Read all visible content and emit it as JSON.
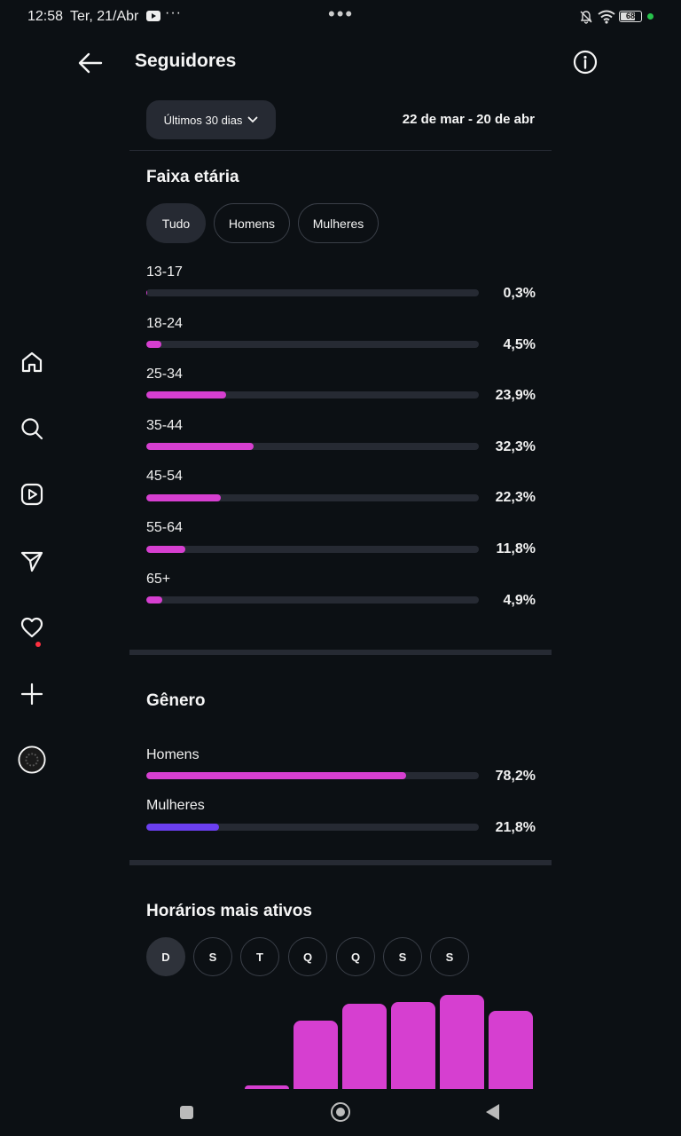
{
  "status_bar": {
    "time": "12:58",
    "date": "Ter, 21/Abr",
    "more": "···",
    "center_dots": "•••",
    "battery": "68"
  },
  "header": {
    "title": "Seguidores"
  },
  "period": {
    "label": "Últimos 30 dias",
    "range": "22 de mar - 20 de abr"
  },
  "age": {
    "title": "Faixa etária",
    "filters": [
      {
        "label": "Tudo",
        "active": true
      },
      {
        "label": "Homens",
        "active": false
      },
      {
        "label": "Mulheres",
        "active": false
      }
    ],
    "rows": [
      {
        "label": "13-17",
        "pct": "0,3%",
        "value": 0.3
      },
      {
        "label": "18-24",
        "pct": "4,5%",
        "value": 4.5
      },
      {
        "label": "25-34",
        "pct": "23,9%",
        "value": 23.9
      },
      {
        "label": "35-44",
        "pct": "32,3%",
        "value": 32.3
      },
      {
        "label": "45-54",
        "pct": "22,3%",
        "value": 22.3
      },
      {
        "label": "55-64",
        "pct": "11,8%",
        "value": 11.8
      },
      {
        "label": "65+",
        "pct": "4,9%",
        "value": 4.9
      }
    ]
  },
  "gender": {
    "title": "Gênero",
    "rows": [
      {
        "label": "Homens",
        "pct": "78,2%",
        "value": 78.2,
        "color": "#d63fd0"
      },
      {
        "label": "Mulheres",
        "pct": "21,8%",
        "value": 21.8,
        "color": "#6b3ff0"
      }
    ]
  },
  "active_times": {
    "title": "Horários mais ativos",
    "days": [
      {
        "label": "D",
        "active": true
      },
      {
        "label": "S",
        "active": false
      },
      {
        "label": "T",
        "active": false
      },
      {
        "label": "Q",
        "active": false
      },
      {
        "label": "Q",
        "active": false
      },
      {
        "label": "S",
        "active": false
      },
      {
        "label": "S",
        "active": false
      }
    ],
    "bars": [
      0,
      0,
      4,
      78,
      98,
      100,
      108,
      90
    ]
  },
  "colors": {
    "accent": "#d63fd0",
    "accent_secondary": "#6b3ff0",
    "background": "#0c1014",
    "track": "#262a33"
  }
}
